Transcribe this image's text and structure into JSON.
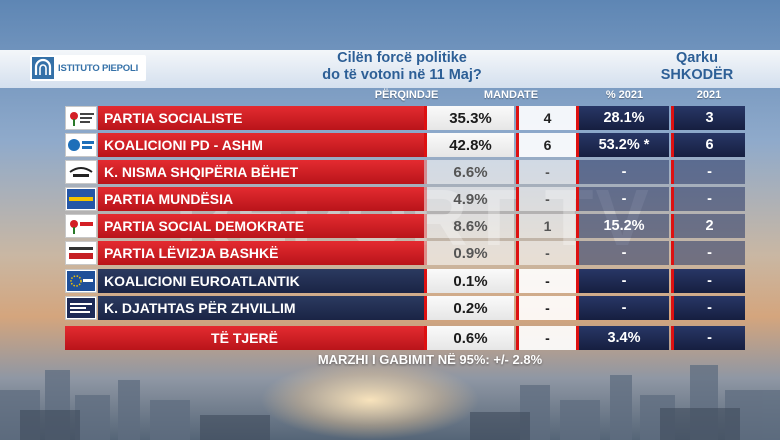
{
  "header": {
    "logo_text": "ISTITUTO PIEPOLI",
    "question_line1": "Cilën forcë politike",
    "question_line2": "do të votoni në 11 Maj?",
    "region_line1": "Qarku",
    "region_line2": "SHKODËR"
  },
  "columns": {
    "percent": "PËRQINDJE",
    "mandates": "MANDATE",
    "percent_2021": "% 2021",
    "seats_2021": "2021"
  },
  "rows": [
    {
      "party": "PARTIA SOCIALISTE",
      "logo": "ps-rose-icon",
      "percent": "35.3%",
      "mandates": "4",
      "percent_2021": "28.1%",
      "seats_2021": "3",
      "highlight": true,
      "color": "red"
    },
    {
      "party": "KOALICIONI PD - ASHM",
      "logo": "pd-logo-icon",
      "percent": "42.8%",
      "mandates": "6",
      "percent_2021": "53.2% *",
      "seats_2021": "6",
      "highlight": true,
      "color": "red"
    },
    {
      "party": "K. NISMA SHQIPËRIA BËHET",
      "logo": "shqiperia-behet-icon",
      "percent": "6.6%",
      "mandates": "-",
      "percent_2021": "-",
      "seats_2021": "-",
      "highlight": false,
      "color": "red"
    },
    {
      "party": "PARTIA MUNDËSIA",
      "logo": "mundesia-logo-icon",
      "percent": "4.9%",
      "mandates": "-",
      "percent_2021": "-",
      "seats_2021": "-",
      "highlight": false,
      "color": "red"
    },
    {
      "party": "PARTIA SOCIAL DEMOKRATE",
      "logo": "psd-rose-icon",
      "percent": "8.6%",
      "mandates": "1",
      "percent_2021": "15.2%",
      "seats_2021": "2",
      "highlight": false,
      "color": "red"
    },
    {
      "party": "PARTIA LËVIZJA BASHKË",
      "logo": "bashke-logo-icon",
      "percent": "0.9%",
      "mandates": "-",
      "percent_2021": "-",
      "seats_2021": "-",
      "highlight": false,
      "color": "red"
    },
    {
      "party": "KOALICIONI EUROATLANTIK",
      "logo": "euroatlantik-logo-icon",
      "percent": "0.1%",
      "mandates": "-",
      "percent_2021": "-",
      "seats_2021": "-",
      "highlight": true,
      "color": "dark"
    },
    {
      "party": "K. DJATHTAS PËR ZHVILLIM",
      "logo": "djathtas-logo-icon",
      "percent": "0.2%",
      "mandates": "-",
      "percent_2021": "-",
      "seats_2021": "-",
      "highlight": true,
      "color": "dark"
    }
  ],
  "others": {
    "label": "TË TJERË",
    "percent": "0.6%",
    "mandates": "-",
    "percent_2021": "3.4%",
    "seats_2021": "-"
  },
  "footer": "MARZHI I GABIMIT NË 95%: +/- 2.8%",
  "watermark": "REPORT TV",
  "colors": {
    "accent_red": "#d42026",
    "navy": "#1f2b52",
    "title_blue": "#2d5f96"
  }
}
